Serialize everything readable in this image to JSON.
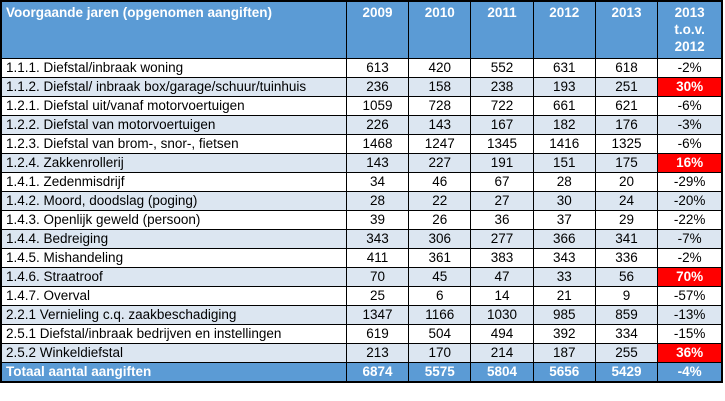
{
  "chart_data": {
    "type": "table",
    "title": "Voorgaande jaren (opgenomen aangiften)",
    "columns": [
      "2009",
      "2010",
      "2011",
      "2012",
      "2013",
      "2013 t.o.v. 2012"
    ],
    "change_header_lines": [
      "2013",
      "t.o.v.",
      "2012"
    ],
    "rows": [
      {
        "label": "1.1.1. Diefstal/inbraak woning",
        "values": [
          613,
          420,
          552,
          631,
          618
        ],
        "change": "-2%",
        "highlight": false
      },
      {
        "label": "1.1.2. Diefstal/ inbraak box/garage/schuur/tuinhuis",
        "values": [
          236,
          158,
          238,
          193,
          251
        ],
        "change": "30%",
        "highlight": true
      },
      {
        "label": "1.2.1. Diefstal uit/vanaf motorvoertuigen",
        "values": [
          1059,
          728,
          722,
          661,
          621
        ],
        "change": "-6%",
        "highlight": false
      },
      {
        "label": "1.2.2. Diefstal van motorvoertuigen",
        "values": [
          226,
          143,
          167,
          182,
          176
        ],
        "change": "-3%",
        "highlight": false
      },
      {
        "label": "1.2.3. Diefstal van brom-, snor-, fietsen",
        "values": [
          1468,
          1247,
          1345,
          1416,
          1325
        ],
        "change": "-6%",
        "highlight": false
      },
      {
        "label": "1.2.4. Zakkenrollerij",
        "values": [
          143,
          227,
          191,
          151,
          175
        ],
        "change": "16%",
        "highlight": true
      },
      {
        "label": "1.4.1. Zedenmisdrijf",
        "values": [
          34,
          46,
          67,
          28,
          20
        ],
        "change": "-29%",
        "highlight": false
      },
      {
        "label": "1.4.2. Moord, doodslag (poging)",
        "values": [
          28,
          22,
          27,
          30,
          24
        ],
        "change": "-20%",
        "highlight": false
      },
      {
        "label": "1.4.3. Openlijk geweld (persoon)",
        "values": [
          39,
          26,
          36,
          37,
          29
        ],
        "change": "-22%",
        "highlight": false
      },
      {
        "label": "1.4.4. Bedreiging",
        "values": [
          343,
          306,
          277,
          366,
          341
        ],
        "change": "-7%",
        "highlight": false
      },
      {
        "label": "1.4.5. Mishandeling",
        "values": [
          411,
          361,
          383,
          343,
          336
        ],
        "change": "-2%",
        "highlight": false
      },
      {
        "label": "1.4.6. Straatroof",
        "values": [
          70,
          45,
          47,
          33,
          56
        ],
        "change": "70%",
        "highlight": true
      },
      {
        "label": "1.4.7. Overval",
        "values": [
          25,
          6,
          14,
          21,
          9
        ],
        "change": "-57%",
        "highlight": false
      },
      {
        "label": "2.2.1 Vernieling c.q. zaakbeschadiging",
        "values": [
          1347,
          1166,
          1030,
          985,
          859
        ],
        "change": "-13%",
        "highlight": false
      },
      {
        "label": "2.5.1 Diefstal/inbraak bedrijven en instellingen",
        "values": [
          619,
          504,
          494,
          392,
          334
        ],
        "change": "-15%",
        "highlight": false
      },
      {
        "label": "2.5.2 Winkeldiefstal",
        "values": [
          213,
          170,
          214,
          187,
          255
        ],
        "change": "36%",
        "highlight": true
      }
    ],
    "total": {
      "label": "Totaal aantal aangiften",
      "values": [
        6874,
        5575,
        5804,
        5656,
        5429
      ],
      "change": "-4%"
    }
  },
  "colors": {
    "header_bg": "#5B9BD5",
    "band_bg": "#DCE6F1",
    "white_bg": "#FFFFFF",
    "highlight_bg": "#FF0000",
    "header_text": "#FFFFFF",
    "body_text": "#000000",
    "border": "#000000"
  }
}
